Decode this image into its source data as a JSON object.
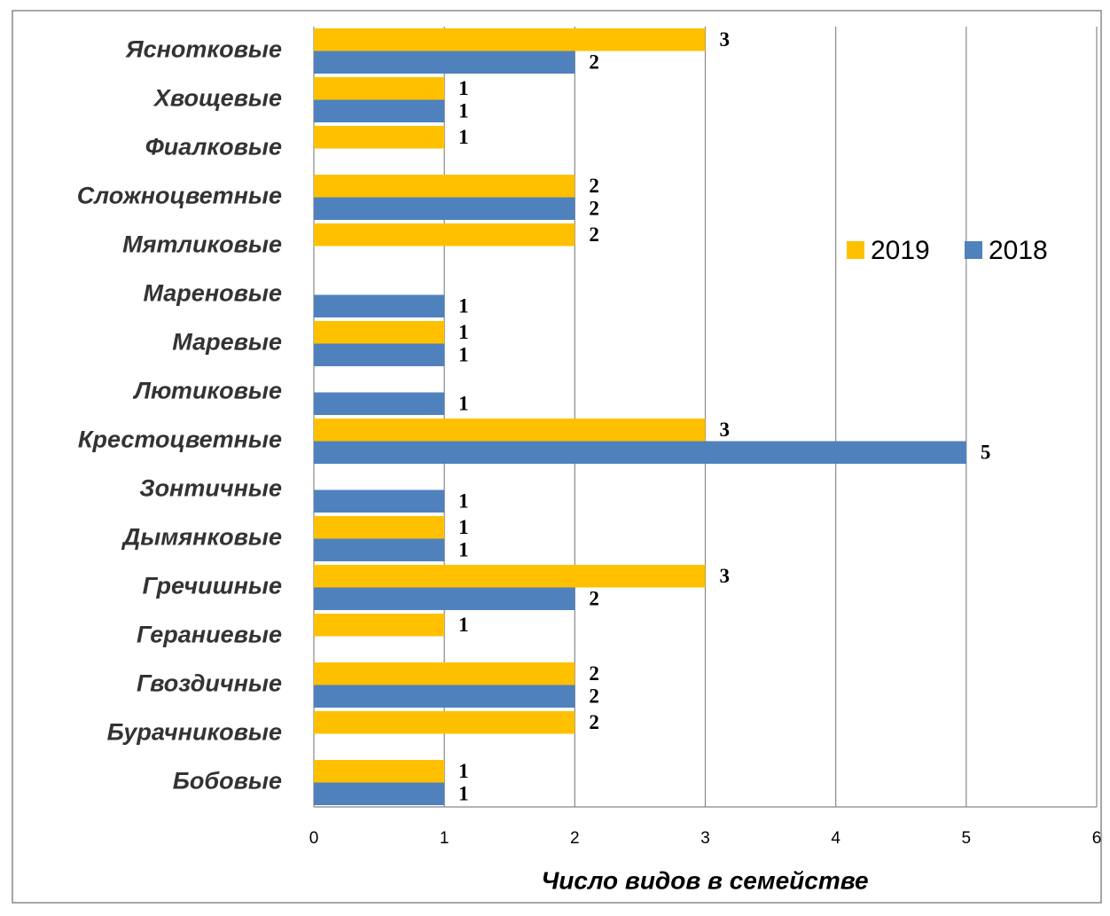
{
  "chart_data": {
    "type": "bar",
    "orientation": "horizontal",
    "x_label": "Число видов в семействе",
    "categories": [
      "Яснотковые",
      "Хвощевые",
      "Фиалковые",
      "Сложноцветные",
      "Мятликовые",
      "Мареновые",
      "Маревые",
      "Лютиковые",
      "Крестоцветные",
      "Зонтичные",
      "Дымянковые",
      "Гречишные",
      "Гераниевые",
      "Гвоздичные",
      "Бурачниковые",
      "Бобовые"
    ],
    "series": [
      {
        "name": "2019",
        "color": "#FFC000",
        "values": [
          3,
          1,
          1,
          2,
          2,
          null,
          1,
          null,
          3,
          null,
          1,
          3,
          1,
          2,
          2,
          1
        ]
      },
      {
        "name": "2018",
        "color": "#4F81BD",
        "values": [
          2,
          1,
          null,
          2,
          null,
          1,
          1,
          1,
          5,
          1,
          1,
          2,
          null,
          2,
          null,
          1
        ]
      }
    ],
    "xlim": [
      0,
      6
    ],
    "xticks": [
      0,
      1,
      2,
      3,
      4,
      5,
      6
    ],
    "grid": true,
    "legend": "right"
  }
}
